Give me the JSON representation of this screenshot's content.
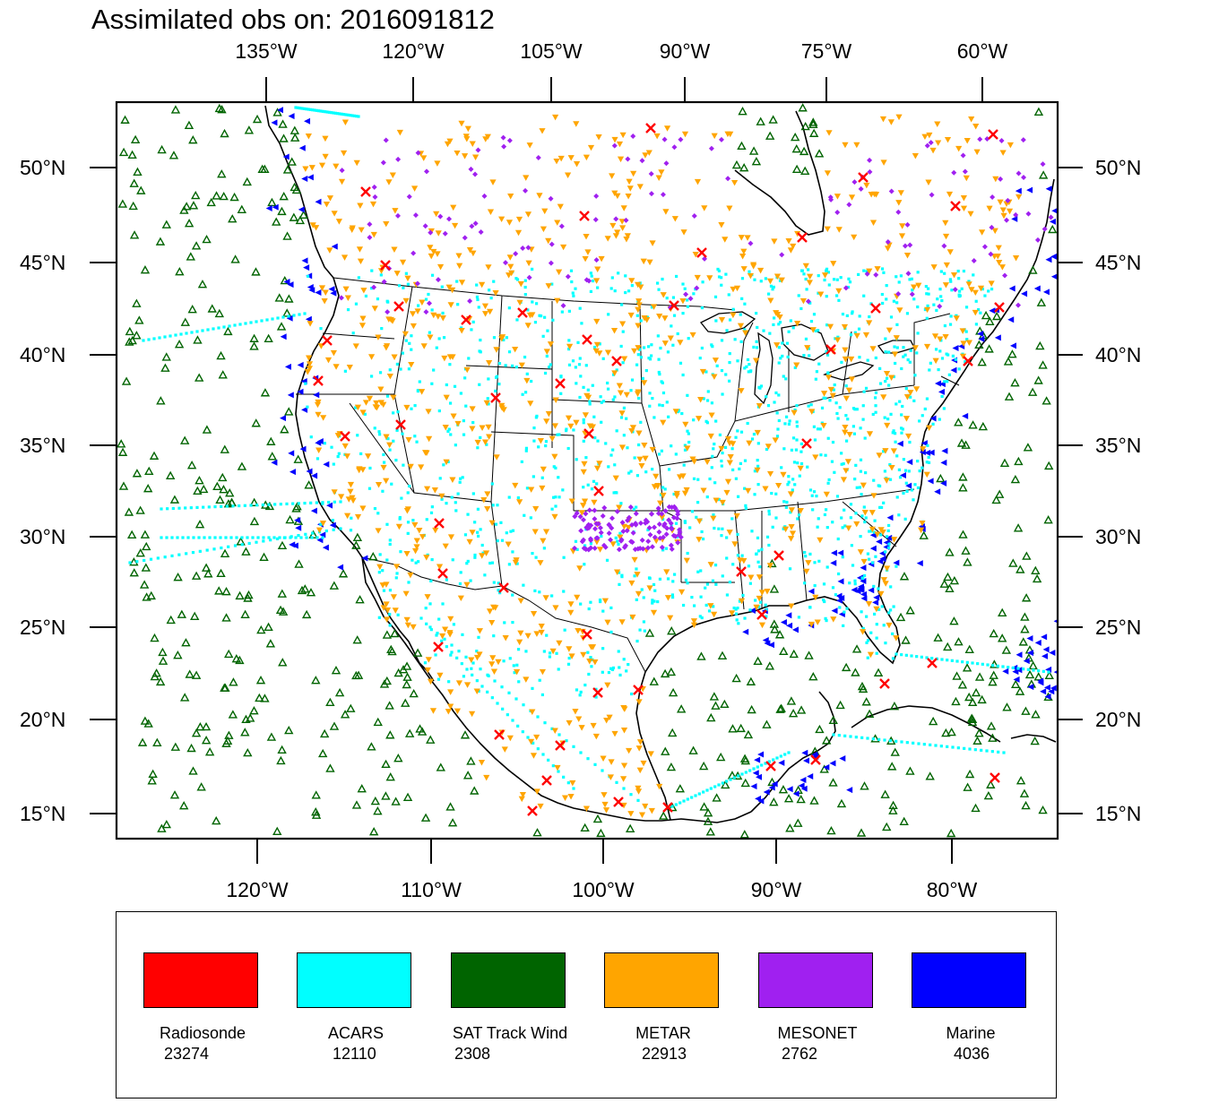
{
  "title": "Assimilated obs on: 2016091812",
  "axes": {
    "top_lon_labels": [
      "135°W",
      "120°W",
      "105°W",
      "90°W",
      "75°W",
      "60°W"
    ],
    "bottom_lon_labels": [
      "120°W",
      "110°W",
      "100°W",
      "90°W",
      "80°W"
    ],
    "left_lat_labels": [
      "50°N",
      "45°N",
      "40°N",
      "35°N",
      "30°N",
      "25°N",
      "20°N",
      "15°N"
    ],
    "right_lat_labels": [
      "50°N",
      "45°N",
      "40°N",
      "35°N",
      "30°N",
      "25°N",
      "20°N",
      "15°N"
    ]
  },
  "colors": {
    "radiosonde": "#ff0000",
    "acars": "#00ffff",
    "sat_track_wind": "#006400",
    "metar": "#ffa500",
    "mesonet": "#a020f0",
    "marine": "#0000ff",
    "coast": "#000000"
  },
  "legend": [
    {
      "name": "Radiosonde",
      "count": "23274",
      "color": "#ff0000",
      "icon": "x-mark-icon"
    },
    {
      "name": "ACARS",
      "count": "12110",
      "color": "#00ffff",
      "icon": "dot-icon"
    },
    {
      "name": "SAT Track Wind",
      "count": "2308",
      "color": "#006400",
      "icon": "triangle-up-icon"
    },
    {
      "name": "METAR",
      "count": "22913",
      "color": "#ffa500",
      "icon": "triangle-down-icon"
    },
    {
      "name": "MESONET",
      "count": "2762",
      "color": "#a020f0",
      "icon": "diamond-icon"
    },
    {
      "name": "Marine",
      "count": "4036",
      "color": "#0000ff",
      "icon": "triangle-left-icon"
    }
  ]
}
